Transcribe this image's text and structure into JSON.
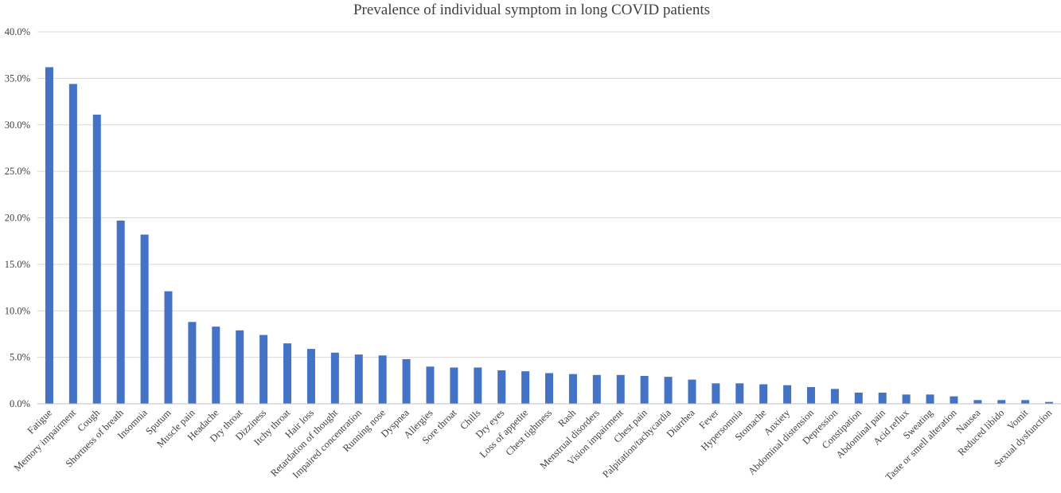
{
  "chart_data": {
    "type": "bar",
    "title": "Prevalence of individual symptom in long COVID patients",
    "xlabel": "",
    "ylabel": "",
    "ylim": [
      0,
      40
    ],
    "ytick_step": 5,
    "ytick_labels": [
      "0.0%",
      "5.0%",
      "10.0%",
      "15.0%",
      "20.0%",
      "25.0%",
      "30.0%",
      "35.0%",
      "40.0%"
    ],
    "grid": "horizontal",
    "legend": "none",
    "bar_color": "#4472C4",
    "categories": [
      "Fatigue",
      "Memory impairment",
      "Cough",
      "Shortness of breath",
      "Insomnia",
      "Sputum",
      "Muscle pain",
      "Headache",
      "Dry throat",
      "Dizziness",
      "Itchy throat",
      "Hair loss",
      "Retardation of thought",
      "Impaired concentration",
      "Running nose",
      "Dyspnea",
      "Allergies",
      "Sore throat",
      "Chills",
      "Dry eyes",
      "Loss of appetite",
      "Chest tightness",
      "Rash",
      "Menstrual disorders",
      "Vision impairment",
      "Chest pain",
      "Palpitation/tachycardia",
      "Diarrhea",
      "Fever",
      "Hypersomnia",
      "Stomache",
      "Anxiety",
      "Abdominal distension",
      "Depression",
      "Constipation",
      "Abdominal pain",
      "Acid reflux",
      "Sweating",
      "Taste or smell alteration",
      "Nausea",
      "Reduced libido",
      "Vomit",
      "Sexual dysfunction"
    ],
    "values": [
      36.2,
      34.4,
      31.1,
      19.7,
      18.2,
      12.1,
      8.8,
      8.3,
      7.9,
      7.4,
      6.5,
      5.9,
      5.5,
      5.3,
      5.2,
      4.8,
      4.0,
      3.9,
      3.9,
      3.6,
      3.5,
      3.3,
      3.2,
      3.1,
      3.1,
      3.0,
      2.9,
      2.6,
      2.2,
      2.2,
      2.1,
      2.0,
      1.8,
      1.6,
      1.2,
      1.2,
      1.0,
      1.0,
      0.8,
      0.4,
      0.4,
      0.4,
      0.2
    ]
  }
}
